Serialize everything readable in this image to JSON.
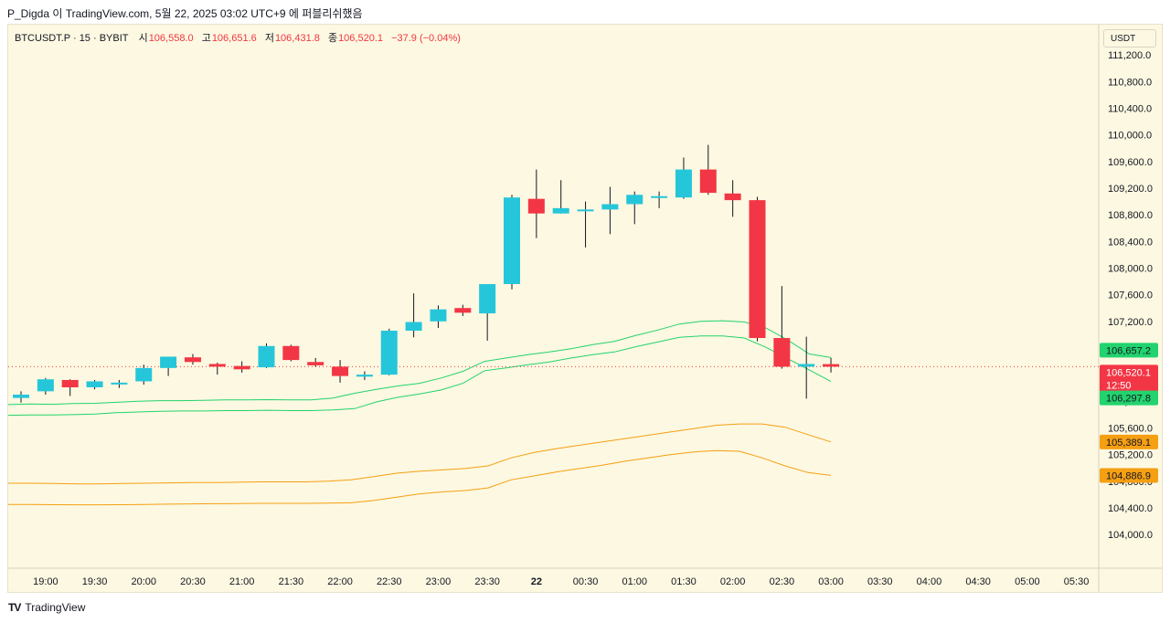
{
  "publish_info": "P_Digda 이 TradingView.com, 5월 22, 2025 03:02 UTC+9 에 퍼블리쉬했음",
  "legend": {
    "symbol": "BTCUSDT.P · 15 · BYBIT",
    "open_label": "시",
    "open": "106,558.0",
    "high_label": "고",
    "high": "106,651.6",
    "low_label": "저",
    "low": "106,431.8",
    "close_label": "종",
    "close": "106,520.1",
    "change": "−37.9 (−0.04%)"
  },
  "currency_button": "USDT",
  "footer": {
    "brand": "TradingView",
    "logo": "TV"
  },
  "colors": {
    "up": "#26c6da",
    "down": "#f23645",
    "green_band": "#22d36e",
    "orange_band": "#f59f13",
    "background": "#fdf8e1"
  },
  "chart_data": {
    "type": "candlestick",
    "ylim": [
      103800,
      111600
    ],
    "yticks": [
      "111,200.0",
      "110,800.0",
      "110,400.0",
      "110,000.0",
      "109,600.0",
      "109,200.0",
      "108,800.0",
      "108,400.0",
      "108,000.0",
      "107,600.0",
      "107,200.0",
      "106,800.0",
      "106,400.0",
      "106,000.0",
      "105,600.0",
      "105,200.0",
      "104,800.0",
      "104,400.0",
      "104,000.0"
    ],
    "ytick_values": [
      111200,
      110800,
      110400,
      110000,
      109600,
      109200,
      108800,
      108400,
      108000,
      107600,
      107200,
      106800,
      106400,
      106000,
      105600,
      105200,
      104800,
      104400,
      104000
    ],
    "xticks": [
      "19:00",
      "19:30",
      "20:00",
      "20:30",
      "21:00",
      "21:30",
      "22:00",
      "22:30",
      "23:00",
      "23:30",
      "22",
      "00:30",
      "01:00",
      "01:30",
      "02:00",
      "02:30",
      "03:00",
      "03:30",
      "04:00",
      "04:30",
      "05:00",
      "05:30"
    ],
    "xtick_index": [
      1,
      3,
      5,
      7,
      9,
      11,
      13,
      15,
      17,
      19,
      21,
      23,
      25,
      27,
      29,
      31,
      33,
      35,
      37,
      39,
      41,
      43
    ],
    "candles": [
      {
        "o": 106050,
        "h": 106150,
        "l": 105980,
        "c": 106100
      },
      {
        "o": 106150,
        "h": 106350,
        "l": 106100,
        "c": 106330
      },
      {
        "o": 106320,
        "h": 106330,
        "l": 106080,
        "c": 106210
      },
      {
        "o": 106210,
        "h": 106320,
        "l": 106180,
        "c": 106300
      },
      {
        "o": 106270,
        "h": 106320,
        "l": 106200,
        "c": 106280
      },
      {
        "o": 106300,
        "h": 106550,
        "l": 106250,
        "c": 106500
      },
      {
        "o": 106500,
        "h": 106670,
        "l": 106380,
        "c": 106670
      },
      {
        "o": 106660,
        "h": 106710,
        "l": 106550,
        "c": 106590
      },
      {
        "o": 106560,
        "h": 106580,
        "l": 106400,
        "c": 106520
      },
      {
        "o": 106530,
        "h": 106600,
        "l": 106430,
        "c": 106480
      },
      {
        "o": 106510,
        "h": 106870,
        "l": 106500,
        "c": 106830
      },
      {
        "o": 106830,
        "h": 106850,
        "l": 106600,
        "c": 106620
      },
      {
        "o": 106590,
        "h": 106650,
        "l": 106520,
        "c": 106540
      },
      {
        "o": 106520,
        "h": 106620,
        "l": 106280,
        "c": 106380
      },
      {
        "o": 106370,
        "h": 106450,
        "l": 106320,
        "c": 106400
      },
      {
        "o": 106400,
        "h": 107090,
        "l": 106390,
        "c": 107060
      },
      {
        "o": 107060,
        "h": 107620,
        "l": 106960,
        "c": 107190
      },
      {
        "o": 107200,
        "h": 107440,
        "l": 107100,
        "c": 107380
      },
      {
        "o": 107400,
        "h": 107450,
        "l": 107280,
        "c": 107330
      },
      {
        "o": 107320,
        "h": 107700,
        "l": 106910,
        "c": 107760
      },
      {
        "o": 107760,
        "h": 109100,
        "l": 107680,
        "c": 109060
      },
      {
        "o": 109040,
        "h": 109480,
        "l": 108450,
        "c": 108820
      },
      {
        "o": 108820,
        "h": 109320,
        "l": 108820,
        "c": 108900
      },
      {
        "o": 108880,
        "h": 109000,
        "l": 108310,
        "c": 108880
      },
      {
        "o": 108880,
        "h": 109220,
        "l": 108510,
        "c": 108960
      },
      {
        "o": 108960,
        "h": 109150,
        "l": 108660,
        "c": 109100
      },
      {
        "o": 109070,
        "h": 109150,
        "l": 108900,
        "c": 109080
      },
      {
        "o": 109060,
        "h": 109660,
        "l": 109040,
        "c": 109480
      },
      {
        "o": 109480,
        "h": 109850,
        "l": 109100,
        "c": 109130
      },
      {
        "o": 109120,
        "h": 109320,
        "l": 108770,
        "c": 109020
      },
      {
        "o": 109020,
        "h": 109070,
        "l": 106900,
        "c": 106950
      },
      {
        "o": 106950,
        "h": 107730,
        "l": 106490,
        "c": 106520
      },
      {
        "o": 106520,
        "h": 106970,
        "l": 106040,
        "c": 106560
      },
      {
        "o": 106558,
        "h": 106652,
        "l": 106432,
        "c": 106520
      }
    ],
    "upper_band_1": [
      105950,
      105960,
      105955,
      105965,
      105970,
      105985,
      106000,
      106010,
      106010,
      106015,
      106020,
      106020,
      106025,
      106020,
      106020,
      106050,
      106120,
      106180,
      106230,
      106270,
      106350,
      106450,
      106600,
      106650,
      106700,
      106740,
      106790,
      106850,
      106900,
      106990,
      107070,
      107160,
      107200,
      107210,
      107190,
      107100,
      106920,
      106710,
      106657
    ],
    "upper_band_2": [
      105790,
      105795,
      105795,
      105800,
      105810,
      105830,
      105840,
      105850,
      105855,
      105855,
      105860,
      105860,
      105865,
      105860,
      105860,
      105870,
      105890,
      105990,
      106060,
      106110,
      106170,
      106270,
      106460,
      106500,
      106550,
      106590,
      106650,
      106700,
      106740,
      106820,
      106890,
      106960,
      106980,
      106980,
      106950,
      106810,
      106640,
      106470,
      106298
    ],
    "lower_band_1": [
      104770,
      104770,
      104765,
      104760,
      104760,
      104765,
      104770,
      104775,
      104780,
      104780,
      104785,
      104790,
      104790,
      104790,
      104800,
      104820,
      104870,
      104920,
      104950,
      104970,
      104990,
      105030,
      105150,
      105230,
      105290,
      105340,
      105390,
      105440,
      105490,
      105540,
      105590,
      105640,
      105660,
      105660,
      105610,
      105500,
      105389
    ],
    "lower_band_2": [
      104450,
      104450,
      104448,
      104446,
      104446,
      104448,
      104452,
      104456,
      104460,
      104462,
      104464,
      104468,
      104468,
      104468,
      104472,
      104476,
      104510,
      104560,
      104610,
      104640,
      104660,
      104700,
      104820,
      104880,
      104940,
      104990,
      105040,
      105100,
      105150,
      105200,
      105240,
      105260,
      105250,
      105150,
      105030,
      104930,
      104887
    ],
    "price_labels": [
      {
        "text": "106,657.2",
        "value": 106657.2,
        "color": "#22d36e"
      },
      {
        "text": "106,520.1",
        "sub": "12:50",
        "value": 106520.1,
        "color": "#f23645"
      },
      {
        "text": "106,297.8",
        "value": 106297.8,
        "color": "#22d36e"
      },
      {
        "text": "105,389.1",
        "value": 105389.1,
        "color": "#f59f13"
      },
      {
        "text": "104,886.9",
        "value": 104886.9,
        "color": "#f59f13"
      }
    ]
  }
}
